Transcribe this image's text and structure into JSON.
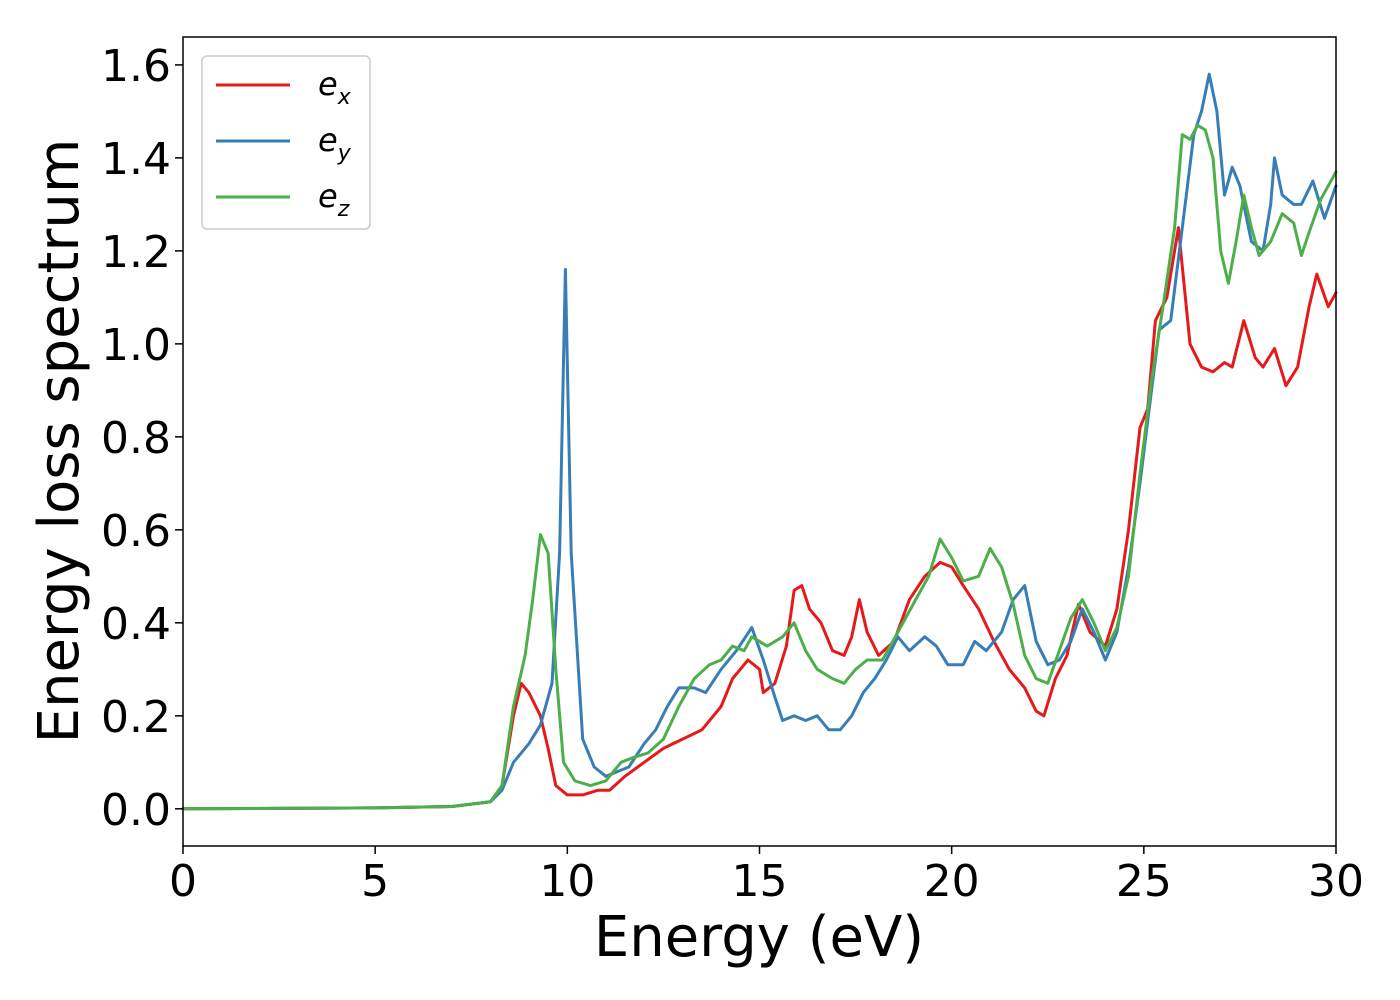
{
  "chart_data": {
    "type": "line",
    "title": "",
    "xlabel": "Energy (eV)",
    "ylabel": "Energy loss spectrum",
    "xlim": [
      0,
      30
    ],
    "ylim": [
      -0.08,
      1.66
    ],
    "xticks": [
      0,
      5,
      10,
      15,
      20,
      25,
      30
    ],
    "xtick_labels": [
      "0",
      "5",
      "10",
      "15",
      "20",
      "25",
      "30"
    ],
    "yticks": [
      0.0,
      0.2,
      0.4,
      0.6,
      0.8,
      1.0,
      1.2,
      1.4,
      1.6
    ],
    "ytick_labels": [
      "0.0",
      "0.2",
      "0.4",
      "0.6",
      "0.8",
      "1.0",
      "1.2",
      "1.4",
      "1.6"
    ],
    "grid": false,
    "legend_position": "top-left",
    "series": [
      {
        "name": "e",
        "subscript": "x",
        "color": "#e41a1c",
        "points": [
          [
            0,
            0.0
          ],
          [
            5,
            0.002
          ],
          [
            7,
            0.005
          ],
          [
            8,
            0.015
          ],
          [
            8.3,
            0.05
          ],
          [
            8.6,
            0.2
          ],
          [
            8.8,
            0.27
          ],
          [
            9.0,
            0.25
          ],
          [
            9.3,
            0.2
          ],
          [
            9.5,
            0.13
          ],
          [
            9.7,
            0.05
          ],
          [
            10.0,
            0.03
          ],
          [
            10.4,
            0.03
          ],
          [
            10.8,
            0.04
          ],
          [
            11.1,
            0.04
          ],
          [
            11.5,
            0.07
          ],
          [
            12.0,
            0.1
          ],
          [
            12.5,
            0.13
          ],
          [
            13.0,
            0.15
          ],
          [
            13.5,
            0.17
          ],
          [
            14.0,
            0.22
          ],
          [
            14.3,
            0.28
          ],
          [
            14.5,
            0.3
          ],
          [
            14.7,
            0.32
          ],
          [
            15.0,
            0.3
          ],
          [
            15.1,
            0.25
          ],
          [
            15.4,
            0.27
          ],
          [
            15.7,
            0.35
          ],
          [
            15.9,
            0.47
          ],
          [
            16.1,
            0.48
          ],
          [
            16.3,
            0.43
          ],
          [
            16.6,
            0.4
          ],
          [
            16.9,
            0.34
          ],
          [
            17.2,
            0.33
          ],
          [
            17.4,
            0.37
          ],
          [
            17.6,
            0.45
          ],
          [
            17.8,
            0.38
          ],
          [
            18.1,
            0.33
          ],
          [
            18.5,
            0.36
          ],
          [
            18.9,
            0.45
          ],
          [
            19.3,
            0.5
          ],
          [
            19.7,
            0.53
          ],
          [
            20.0,
            0.52
          ],
          [
            20.3,
            0.48
          ],
          [
            20.7,
            0.43
          ],
          [
            21.1,
            0.36
          ],
          [
            21.5,
            0.3
          ],
          [
            21.9,
            0.26
          ],
          [
            22.2,
            0.21
          ],
          [
            22.4,
            0.2
          ],
          [
            22.7,
            0.28
          ],
          [
            23.0,
            0.33
          ],
          [
            23.3,
            0.44
          ],
          [
            23.6,
            0.38
          ],
          [
            24.0,
            0.35
          ],
          [
            24.3,
            0.43
          ],
          [
            24.6,
            0.6
          ],
          [
            24.9,
            0.82
          ],
          [
            25.1,
            0.86
          ],
          [
            25.3,
            1.05
          ],
          [
            25.6,
            1.1
          ],
          [
            25.9,
            1.25
          ],
          [
            26.2,
            1.0
          ],
          [
            26.5,
            0.95
          ],
          [
            26.8,
            0.94
          ],
          [
            27.1,
            0.96
          ],
          [
            27.3,
            0.95
          ],
          [
            27.6,
            1.05
          ],
          [
            27.9,
            0.97
          ],
          [
            28.1,
            0.95
          ],
          [
            28.4,
            0.99
          ],
          [
            28.7,
            0.91
          ],
          [
            29.0,
            0.95
          ],
          [
            29.3,
            1.08
          ],
          [
            29.5,
            1.15
          ],
          [
            29.8,
            1.08
          ],
          [
            30.0,
            1.11
          ]
        ]
      },
      {
        "name": "e",
        "subscript": "y",
        "color": "#377eb8",
        "points": [
          [
            0,
            0.0
          ],
          [
            5,
            0.002
          ],
          [
            7,
            0.005
          ],
          [
            8,
            0.015
          ],
          [
            8.3,
            0.04
          ],
          [
            8.6,
            0.1
          ],
          [
            9.0,
            0.14
          ],
          [
            9.3,
            0.18
          ],
          [
            9.6,
            0.27
          ],
          [
            9.8,
            0.55
          ],
          [
            9.95,
            1.16
          ],
          [
            10.1,
            0.55
          ],
          [
            10.4,
            0.15
          ],
          [
            10.7,
            0.09
          ],
          [
            11.0,
            0.07
          ],
          [
            11.3,
            0.08
          ],
          [
            11.6,
            0.09
          ],
          [
            12.0,
            0.14
          ],
          [
            12.3,
            0.17
          ],
          [
            12.6,
            0.22
          ],
          [
            12.9,
            0.26
          ],
          [
            13.3,
            0.26
          ],
          [
            13.6,
            0.25
          ],
          [
            14.0,
            0.3
          ],
          [
            14.4,
            0.34
          ],
          [
            14.8,
            0.39
          ],
          [
            15.1,
            0.32
          ],
          [
            15.4,
            0.24
          ],
          [
            15.6,
            0.19
          ],
          [
            15.9,
            0.2
          ],
          [
            16.2,
            0.19
          ],
          [
            16.5,
            0.2
          ],
          [
            16.8,
            0.17
          ],
          [
            17.1,
            0.17
          ],
          [
            17.4,
            0.2
          ],
          [
            17.7,
            0.25
          ],
          [
            18.0,
            0.28
          ],
          [
            18.3,
            0.32
          ],
          [
            18.6,
            0.37
          ],
          [
            18.9,
            0.34
          ],
          [
            19.3,
            0.37
          ],
          [
            19.6,
            0.35
          ],
          [
            19.9,
            0.31
          ],
          [
            20.3,
            0.31
          ],
          [
            20.6,
            0.36
          ],
          [
            20.9,
            0.34
          ],
          [
            21.3,
            0.38
          ],
          [
            21.6,
            0.45
          ],
          [
            21.9,
            0.48
          ],
          [
            22.2,
            0.36
          ],
          [
            22.5,
            0.31
          ],
          [
            22.8,
            0.32
          ],
          [
            23.1,
            0.36
          ],
          [
            23.4,
            0.43
          ],
          [
            23.7,
            0.38
          ],
          [
            24.0,
            0.32
          ],
          [
            24.3,
            0.38
          ],
          [
            24.6,
            0.52
          ],
          [
            24.9,
            0.7
          ],
          [
            25.2,
            0.9
          ],
          [
            25.4,
            1.03
          ],
          [
            25.7,
            1.05
          ],
          [
            26.0,
            1.25
          ],
          [
            26.3,
            1.45
          ],
          [
            26.5,
            1.5
          ],
          [
            26.7,
            1.58
          ],
          [
            26.9,
            1.5
          ],
          [
            27.1,
            1.32
          ],
          [
            27.3,
            1.38
          ],
          [
            27.5,
            1.34
          ],
          [
            27.8,
            1.22
          ],
          [
            28.1,
            1.2
          ],
          [
            28.3,
            1.3
          ],
          [
            28.4,
            1.4
          ],
          [
            28.6,
            1.32
          ],
          [
            28.9,
            1.3
          ],
          [
            29.1,
            1.3
          ],
          [
            29.4,
            1.35
          ],
          [
            29.7,
            1.27
          ],
          [
            30.0,
            1.34
          ]
        ]
      },
      {
        "name": "e",
        "subscript": "z",
        "color": "#4daf4a",
        "points": [
          [
            0,
            0.0
          ],
          [
            5,
            0.002
          ],
          [
            7,
            0.005
          ],
          [
            8,
            0.015
          ],
          [
            8.3,
            0.05
          ],
          [
            8.6,
            0.22
          ],
          [
            8.9,
            0.33
          ],
          [
            9.1,
            0.45
          ],
          [
            9.3,
            0.59
          ],
          [
            9.5,
            0.55
          ],
          [
            9.7,
            0.3
          ],
          [
            9.9,
            0.1
          ],
          [
            10.2,
            0.06
          ],
          [
            10.6,
            0.05
          ],
          [
            11.0,
            0.06
          ],
          [
            11.4,
            0.1
          ],
          [
            11.7,
            0.11
          ],
          [
            12.1,
            0.12
          ],
          [
            12.5,
            0.15
          ],
          [
            12.9,
            0.22
          ],
          [
            13.3,
            0.28
          ],
          [
            13.7,
            0.31
          ],
          [
            14.0,
            0.32
          ],
          [
            14.3,
            0.35
          ],
          [
            14.6,
            0.34
          ],
          [
            14.8,
            0.37
          ],
          [
            15.2,
            0.35
          ],
          [
            15.6,
            0.37
          ],
          [
            15.9,
            0.4
          ],
          [
            16.2,
            0.34
          ],
          [
            16.5,
            0.3
          ],
          [
            16.9,
            0.28
          ],
          [
            17.2,
            0.27
          ],
          [
            17.5,
            0.3
          ],
          [
            17.8,
            0.32
          ],
          [
            18.2,
            0.32
          ],
          [
            18.6,
            0.38
          ],
          [
            19.0,
            0.44
          ],
          [
            19.4,
            0.5
          ],
          [
            19.7,
            0.58
          ],
          [
            20.0,
            0.54
          ],
          [
            20.3,
            0.49
          ],
          [
            20.7,
            0.5
          ],
          [
            21.0,
            0.56
          ],
          [
            21.3,
            0.52
          ],
          [
            21.6,
            0.44
          ],
          [
            21.9,
            0.33
          ],
          [
            22.2,
            0.28
          ],
          [
            22.5,
            0.27
          ],
          [
            22.8,
            0.34
          ],
          [
            23.1,
            0.41
          ],
          [
            23.4,
            0.45
          ],
          [
            23.7,
            0.4
          ],
          [
            24.0,
            0.34
          ],
          [
            24.3,
            0.39
          ],
          [
            24.6,
            0.5
          ],
          [
            24.9,
            0.72
          ],
          [
            25.2,
            0.92
          ],
          [
            25.5,
            1.08
          ],
          [
            25.8,
            1.25
          ],
          [
            26.0,
            1.45
          ],
          [
            26.2,
            1.44
          ],
          [
            26.4,
            1.47
          ],
          [
            26.6,
            1.46
          ],
          [
            26.8,
            1.4
          ],
          [
            27.0,
            1.2
          ],
          [
            27.2,
            1.13
          ],
          [
            27.4,
            1.22
          ],
          [
            27.6,
            1.32
          ],
          [
            27.8,
            1.25
          ],
          [
            28.0,
            1.19
          ],
          [
            28.3,
            1.22
          ],
          [
            28.6,
            1.28
          ],
          [
            28.9,
            1.26
          ],
          [
            29.1,
            1.19
          ],
          [
            29.3,
            1.24
          ],
          [
            29.6,
            1.31
          ],
          [
            30.0,
            1.37
          ]
        ]
      }
    ]
  }
}
